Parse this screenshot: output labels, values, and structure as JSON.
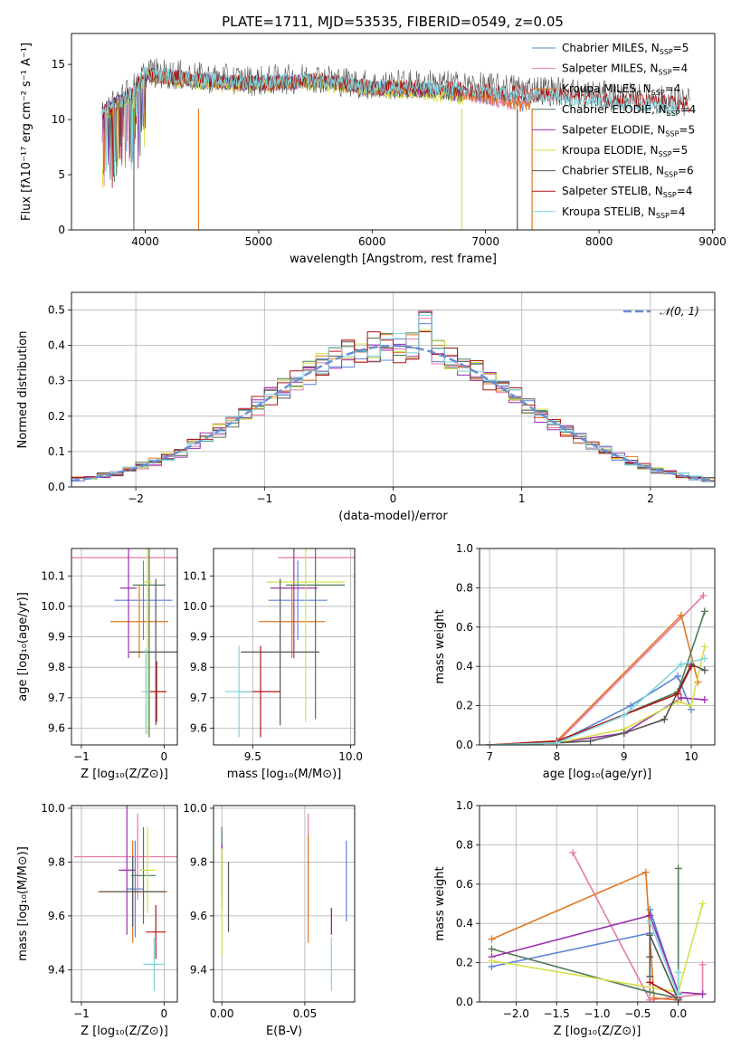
{
  "figure": {
    "title": "PLATE=1711, MJD=53535, FIBERID=0549, z=0.05"
  },
  "colors": {
    "Chabrier MILES": "#5b84d6",
    "Salpeter MILES": "#e87aa8",
    "Kroupa MILES": "#e07820",
    "Chabrier ELODIE": "#4f7a55",
    "Salpeter ELODIE": "#9b2fae",
    "Kroupa ELODIE": "#d6e04a",
    "Chabrier STELIB": "#555555",
    "Salpeter STELIB": "#b01515",
    "Kroupa STELIB": "#7fd6dd",
    "normal": "#6a8fd4"
  },
  "chart_data": [
    {
      "id": "spectrum",
      "type": "line",
      "title": "PLATE=1711, MJD=53535, FIBERID=0549, z=0.05",
      "xlabel": "wavelength [Angstrom, rest frame]",
      "ylabel": "Flux [fλ10⁻¹⁷ erg cm⁻² s⁻¹ A⁻¹]",
      "xlim": [
        3350,
        9020
      ],
      "ylim": [
        0,
        17.8
      ],
      "xticks": [
        4000,
        5000,
        6000,
        7000,
        8000,
        9000
      ],
      "yticks": [
        0,
        5,
        10,
        15
      ],
      "legend": [
        {
          "base": "Chabrier MILES, N",
          "sub": "SSP",
          "value": "=5"
        },
        {
          "base": "Salpeter MILES, N",
          "sub": "SSP",
          "value": "=4"
        },
        {
          "base": "Kroupa MILES, N",
          "sub": "SSP",
          "value": "=4"
        },
        {
          "base": "Chabrier ELODIE, N",
          "sub": "SSP",
          "value": "=4"
        },
        {
          "base": "Salpeter ELODIE, N",
          "sub": "SSP",
          "value": "=5"
        },
        {
          "base": "Kroupa ELODIE, N",
          "sub": "SSP",
          "value": "=5"
        },
        {
          "base": "Chabrier STELIB, N",
          "sub": "SSP",
          "value": "=6"
        },
        {
          "base": "Salpeter STELIB, N",
          "sub": "SSP",
          "value": "=4"
        },
        {
          "base": "Kroupa STELIB, N",
          "sub": "SSP",
          "value": "=4"
        }
      ],
      "legend_position": "upper right",
      "grid": false,
      "series": [
        {
          "name": "Chabrier MILES",
          "x": [
            3620,
            3900,
            4000,
            4500,
            5000,
            5500,
            6000,
            6500,
            7000,
            7400
          ],
          "y": [
            10.5,
            12.5,
            14,
            13.5,
            13.2,
            13.6,
            12.8,
            12.8,
            12.0,
            11.3
          ]
        },
        {
          "name": "Salpeter MILES",
          "x": [
            3620,
            3900,
            4000,
            4500,
            5000,
            5500,
            6000,
            6500,
            7000,
            7400
          ],
          "y": [
            10.4,
            12.4,
            14,
            13.5,
            13.1,
            13.5,
            12.7,
            12.7,
            11.9,
            11.2
          ]
        },
        {
          "name": "Kroupa MILES",
          "x": [
            3620,
            3900,
            4000,
            4500,
            5000,
            5500,
            6000,
            6500,
            7000,
            7400
          ],
          "y": [
            10.4,
            12.4,
            14,
            13.6,
            13.2,
            13.6,
            12.9,
            12.8,
            12.1,
            11.3
          ]
        },
        {
          "name": "Chabrier ELODIE",
          "x": [
            3620,
            3900,
            4000,
            4500,
            5000,
            5500,
            6000,
            6500,
            6800
          ],
          "y": [
            10.6,
            12.6,
            14.1,
            13.4,
            13.2,
            13.5,
            12.8,
            12.6,
            12.2
          ]
        },
        {
          "name": "Salpeter ELODIE",
          "x": [
            3620,
            3900,
            4000,
            4500,
            5000,
            5500,
            6000,
            6500,
            6800
          ],
          "y": [
            10.6,
            12.6,
            14.1,
            13.5,
            13.2,
            13.5,
            12.8,
            12.6,
            12.2
          ]
        },
        {
          "name": "Kroupa ELODIE",
          "x": [
            3620,
            3900,
            4000,
            4500,
            5000,
            5500,
            6000,
            6500,
            6800
          ],
          "y": [
            10.3,
            12.3,
            13.9,
            13.2,
            13.0,
            13.3,
            12.6,
            12.4,
            12.0
          ]
        },
        {
          "name": "Chabrier STELIB",
          "x": [
            3620,
            3900,
            4000,
            4500,
            5000,
            5500,
            6000,
            6500,
            7000,
            7500,
            8000,
            8500,
            8800
          ],
          "y": [
            10.6,
            12.8,
            14.3,
            13.8,
            13.5,
            13.8,
            13.1,
            13.2,
            12.9,
            12.7,
            12.2,
            11.8,
            11.5
          ]
        },
        {
          "name": "Salpeter STELIB",
          "x": [
            3620,
            3900,
            4000,
            4500,
            5000,
            5500,
            6000,
            6500,
            7000,
            7500,
            8000,
            8500,
            8800
          ],
          "y": [
            10.5,
            12.6,
            14.1,
            13.6,
            13.3,
            13.6,
            12.9,
            12.9,
            12.6,
            12.3,
            11.9,
            11.6,
            11.4
          ]
        },
        {
          "name": "Kroupa STELIB",
          "x": [
            3620,
            3900,
            4000,
            4500,
            5000,
            5500,
            6000,
            6500,
            7000,
            7500,
            8000,
            8500,
            8700
          ],
          "y": [
            10.5,
            12.5,
            14.3,
            13.6,
            13.4,
            13.6,
            12.9,
            12.9,
            12.5,
            12.2,
            11.7,
            11.3,
            11.0
          ]
        }
      ]
    },
    {
      "id": "residuals",
      "type": "line",
      "xlabel": "(data-model)/error",
      "ylabel": "Normed distribution",
      "xlim": [
        -2.5,
        2.5
      ],
      "ylim": [
        0,
        0.55
      ],
      "xticks": [
        -2,
        -1,
        0,
        1,
        2
      ],
      "yticks": [
        0.0,
        0.1,
        0.2,
        0.3,
        0.4,
        0.5
      ],
      "grid": true,
      "legend": [
        {
          "label": "𝒩(0, 1)"
        }
      ],
      "legend_position": "upper right",
      "normal_curve": {
        "mean": 0,
        "sigma": 1,
        "style": "dashed"
      },
      "histogram_bin_width": 0.1
    },
    {
      "id": "age-vs-Z",
      "type": "scatter",
      "xlabel": "Z [log₁₀(Z/Z⊙)]",
      "ylabel": "age  [log₁₀(age/yr)]",
      "xlim": [
        -1.12,
        0.16
      ],
      "ylim": [
        9.545,
        10.19
      ],
      "xticks": [
        -1,
        0
      ],
      "yticks": [
        9.6,
        9.7,
        9.8,
        9.9,
        10.0,
        10.1
      ],
      "grid": true,
      "points": [
        {
          "series": "Chabrier MILES",
          "x": -0.25,
          "y": 10.02,
          "xerr": 0.35,
          "yerr": 0.13
        },
        {
          "series": "Salpeter MILES",
          "x": -0.33,
          "y": 10.16,
          "xerr": 0.87,
          "yerr": 0.0
        },
        {
          "series": "Kroupa MILES",
          "x": -0.3,
          "y": 9.95,
          "xerr": 0.35,
          "yerr": 0.12
        },
        {
          "series": "Chabrier ELODIE",
          "x": -0.18,
          "y": 10.07,
          "xerr": 0.2,
          "yerr": 0.5
        },
        {
          "series": "Salpeter ELODIE",
          "x": -0.43,
          "y": 10.06,
          "xerr": 0.1,
          "yerr": 0.23
        },
        {
          "series": "Kroupa ELODIE",
          "x": -0.2,
          "y": 10.08,
          "xerr": 0.05,
          "yerr": 0.5
        },
        {
          "series": "Chabrier STELIB",
          "x": -0.1,
          "y": 9.85,
          "xerr": 0.32,
          "yerr": 0.24
        },
        {
          "series": "Salpeter STELIB",
          "x": -0.09,
          "y": 9.72,
          "xerr": 0.12,
          "yerr": 0.1
        },
        {
          "series": "Kroupa STELIB",
          "x": -0.22,
          "y": 9.72,
          "xerr": 0.05,
          "yerr": 0.14
        }
      ]
    },
    {
      "id": "age-vs-mass",
      "type": "scatter",
      "xlabel": "mass [log₁₀(M/M⊙)]",
      "ylabel": "",
      "xlim": [
        9.3,
        10.02
      ],
      "ylim": [
        9.545,
        10.19
      ],
      "xticks": [
        9.5,
        10.0
      ],
      "yticks": [
        9.6,
        9.7,
        9.8,
        9.9,
        10.0,
        10.1
      ],
      "grid": true,
      "points": [
        {
          "series": "Chabrier MILES",
          "x": 9.73,
          "y": 10.02,
          "xerr": 0.15,
          "yerr": 0.13
        },
        {
          "series": "Salpeter MILES",
          "x": 9.84,
          "y": 10.16,
          "xerr": 0.21,
          "yerr": 0.0
        },
        {
          "series": "Kroupa MILES",
          "x": 9.7,
          "y": 9.95,
          "xerr": 0.17,
          "yerr": 0.12
        },
        {
          "series": "Chabrier ELODIE",
          "x": 9.82,
          "y": 10.07,
          "xerr": 0.15,
          "yerr": 0.44
        },
        {
          "series": "Salpeter ELODIE",
          "x": 9.71,
          "y": 10.06,
          "xerr": 0.12,
          "yerr": 0.23
        },
        {
          "series": "Kroupa ELODIE",
          "x": 9.77,
          "y": 10.08,
          "xerr": 0.2,
          "yerr": 0.46
        },
        {
          "series": "Chabrier STELIB",
          "x": 9.64,
          "y": 9.85,
          "xerr": 0.2,
          "yerr": 0.24
        },
        {
          "series": "Salpeter STELIB",
          "x": 9.54,
          "y": 9.72,
          "xerr": 0.1,
          "yerr": 0.15
        },
        {
          "series": "Kroupa STELIB",
          "x": 9.43,
          "y": 9.72,
          "xerr": 0.07,
          "yerr": 0.15
        }
      ]
    },
    {
      "id": "weight-vs-age",
      "type": "line",
      "xlabel": "age  [log₁₀(age/yr)]",
      "ylabel": "mass weight",
      "xlim": [
        6.85,
        10.35
      ],
      "ylim": [
        0,
        1.0
      ],
      "xticks": [
        7,
        8,
        9,
        10
      ],
      "yticks": [
        0.0,
        0.2,
        0.4,
        0.6,
        0.8,
        1.0
      ],
      "grid": true,
      "series": [
        {
          "name": "Chabrier MILES",
          "x": [
            7.0,
            8.0,
            9.1,
            9.8,
            10.0
          ],
          "y": [
            0.0,
            0.01,
            0.2,
            0.35,
            0.18
          ]
        },
        {
          "name": "Salpeter MILES",
          "x": [
            7.0,
            8.0,
            10.18
          ],
          "y": [
            0.0,
            0.01,
            0.76
          ]
        },
        {
          "name": "Kroupa MILES",
          "x": [
            7.0,
            8.0,
            9.85,
            10.1
          ],
          "y": [
            0.0,
            0.02,
            0.66,
            0.32
          ]
        },
        {
          "name": "Chabrier ELODIE",
          "x": [
            7.0,
            8.0,
            9.8,
            10.2
          ],
          "y": [
            0.0,
            0.01,
            0.27,
            0.68
          ]
        },
        {
          "name": "Salpeter ELODIE",
          "x": [
            7.0,
            8.0,
            9.0,
            9.85,
            10.2
          ],
          "y": [
            0.0,
            0.01,
            0.06,
            0.24,
            0.23
          ]
        },
        {
          "name": "Kroupa ELODIE",
          "x": [
            7.0,
            8.0,
            9.0,
            9.8,
            10.0,
            10.2
          ],
          "y": [
            0.0,
            0.01,
            0.08,
            0.22,
            0.2,
            0.5
          ]
        },
        {
          "name": "Chabrier STELIB",
          "x": [
            7.0,
            8.0,
            8.5,
            9.0,
            9.6,
            10.0,
            10.2
          ],
          "y": [
            0.0,
            0.01,
            0.02,
            0.06,
            0.13,
            0.41,
            0.38
          ]
        },
        {
          "name": "Salpeter STELIB",
          "x": [
            7.0,
            8.0,
            9.8,
            10.0
          ],
          "y": [
            0.0,
            0.02,
            0.26,
            0.4
          ]
        },
        {
          "name": "Kroupa STELIB",
          "x": [
            7.0,
            8.0,
            9.0,
            9.85,
            10.2
          ],
          "y": [
            0.0,
            0.01,
            0.15,
            0.41,
            0.44
          ]
        }
      ]
    },
    {
      "id": "mass-vs-Z",
      "type": "scatter",
      "xlabel": "Z [log₁₀(Z/Z⊙)]",
      "ylabel": "mass [log₁₀(M/M⊙)]",
      "xlim": [
        -1.12,
        0.16
      ],
      "ylim": [
        9.28,
        10.01
      ],
      "xticks": [
        -1,
        0
      ],
      "yticks": [
        9.4,
        9.6,
        9.8,
        10.0
      ],
      "grid": true,
      "points": [
        {
          "series": "Chabrier MILES",
          "x": -0.35,
          "y": 9.7,
          "xerr": 0.1,
          "yerr": 0.18
        },
        {
          "series": "Salpeter MILES",
          "x": -0.32,
          "y": 9.82,
          "xerr": 0.77,
          "yerr": 0.16
        },
        {
          "series": "Kroupa MILES",
          "x": -0.38,
          "y": 9.69,
          "xerr": 0.42,
          "yerr": 0.19
        },
        {
          "series": "Chabrier ELODIE",
          "x": -0.25,
          "y": 9.75,
          "xerr": 0.15,
          "yerr": 0.18
        },
        {
          "series": "Salpeter ELODIE",
          "x": -0.45,
          "y": 9.77,
          "xerr": 0.1,
          "yerr": 0.24
        },
        {
          "series": "Kroupa ELODIE",
          "x": -0.2,
          "y": 9.77,
          "xerr": 0.1,
          "yerr": 0.16
        },
        {
          "series": "Chabrier STELIB",
          "x": -0.38,
          "y": 9.69,
          "xerr": 0.4,
          "yerr": 0.13
        },
        {
          "series": "Salpeter STELIB",
          "x": -0.1,
          "y": 9.54,
          "xerr": 0.12,
          "yerr": 0.1
        },
        {
          "series": "Kroupa STELIB",
          "x": -0.12,
          "y": 9.42,
          "xerr": 0.13,
          "yerr": 0.1
        }
      ]
    },
    {
      "id": "mass-vs-EBV",
      "type": "scatter",
      "xlabel": "E(B-V)",
      "ylabel": "",
      "xlim": [
        -0.005,
        0.08
      ],
      "ylim": [
        9.28,
        10.01
      ],
      "xticks": [
        0.0,
        0.05
      ],
      "yticks": [
        9.4,
        9.6,
        9.8,
        10.0
      ],
      "grid": true,
      "points": [
        {
          "series": "Chabrier MILES",
          "x": 0.075,
          "y": 9.73,
          "xerr": 0,
          "yerr": 0.15
        },
        {
          "series": "Salpeter MILES",
          "x": 0.052,
          "y": 9.79,
          "xerr": 0,
          "yerr": 0.19
        },
        {
          "series": "Kroupa MILES",
          "x": 0.052,
          "y": 9.7,
          "xerr": 0,
          "yerr": 0.2
        },
        {
          "series": "Chabrier ELODIE",
          "x": 0.0,
          "y": 9.78,
          "xerr": 0,
          "yerr": 0.15
        },
        {
          "series": "Salpeter ELODIE",
          "x": 0.0,
          "y": 9.77,
          "xerr": 0,
          "yerr": 0.1
        },
        {
          "series": "Kroupa ELODIE",
          "x": 0.0,
          "y": 9.65,
          "xerr": 0,
          "yerr": 0.2
        },
        {
          "series": "Chabrier STELIB",
          "x": 0.004,
          "y": 9.67,
          "xerr": 0,
          "yerr": 0.13
        },
        {
          "series": "Salpeter STELIB",
          "x": 0.066,
          "y": 9.58,
          "xerr": 0,
          "yerr": 0.05
        },
        {
          "series": "Kroupa STELIB",
          "x": 0.066,
          "y": 9.42,
          "xerr": 0,
          "yerr": 0.1
        }
      ]
    },
    {
      "id": "weight-vs-Z",
      "type": "line",
      "xlabel": "Z [log₁₀(Z/Z⊙)]",
      "ylabel": "mass weight",
      "xlim": [
        -2.45,
        0.45
      ],
      "ylim": [
        0,
        1.0
      ],
      "xticks": [
        -2.0,
        -1.5,
        -1.0,
        -0.5,
        0.0
      ],
      "yticks": [
        0.0,
        0.2,
        0.4,
        0.6,
        0.8,
        1.0
      ],
      "grid": true,
      "series": [
        {
          "name": "Chabrier MILES",
          "x": [
            -2.3,
            -0.35,
            -0.35,
            0.0
          ],
          "y": [
            0.18,
            0.35,
            0.47,
            0.04
          ]
        },
        {
          "name": "Salpeter MILES",
          "x": [
            -1.3,
            -0.35,
            0.3,
            0.3
          ],
          "y": [
            0.76,
            0.01,
            0.04,
            0.19
          ]
        },
        {
          "name": "Kroupa MILES",
          "x": [
            -2.3,
            -0.4,
            -0.3,
            0.0
          ],
          "y": [
            0.32,
            0.66,
            0.02,
            0.01
          ]
        },
        {
          "name": "Chabrier ELODIE",
          "x": [
            -2.3,
            -0.35,
            0.0,
            0.0
          ],
          "y": [
            0.27,
            0.05,
            0.02,
            0.68
          ]
        },
        {
          "name": "Salpeter ELODIE",
          "x": [
            -2.3,
            -0.35,
            0.0,
            0.3
          ],
          "y": [
            0.23,
            0.44,
            0.05,
            0.04
          ]
        },
        {
          "name": "Kroupa ELODIE",
          "x": [
            -2.3,
            0.0,
            0.3
          ],
          "y": [
            0.21,
            0.05,
            0.5
          ]
        },
        {
          "name": "Chabrier STELIB",
          "x": [
            -0.35,
            -0.35,
            -0.35,
            0.0
          ],
          "y": [
            0.13,
            0.23,
            0.34,
            0.01
          ]
        },
        {
          "name": "Salpeter STELIB",
          "x": [
            -0.35,
            0.0
          ],
          "y": [
            0.1,
            0.02
          ]
        },
        {
          "name": "Kroupa STELIB",
          "x": [
            -0.35,
            0.0,
            0.0
          ],
          "y": [
            0.41,
            0.03,
            0.15
          ]
        }
      ]
    }
  ]
}
